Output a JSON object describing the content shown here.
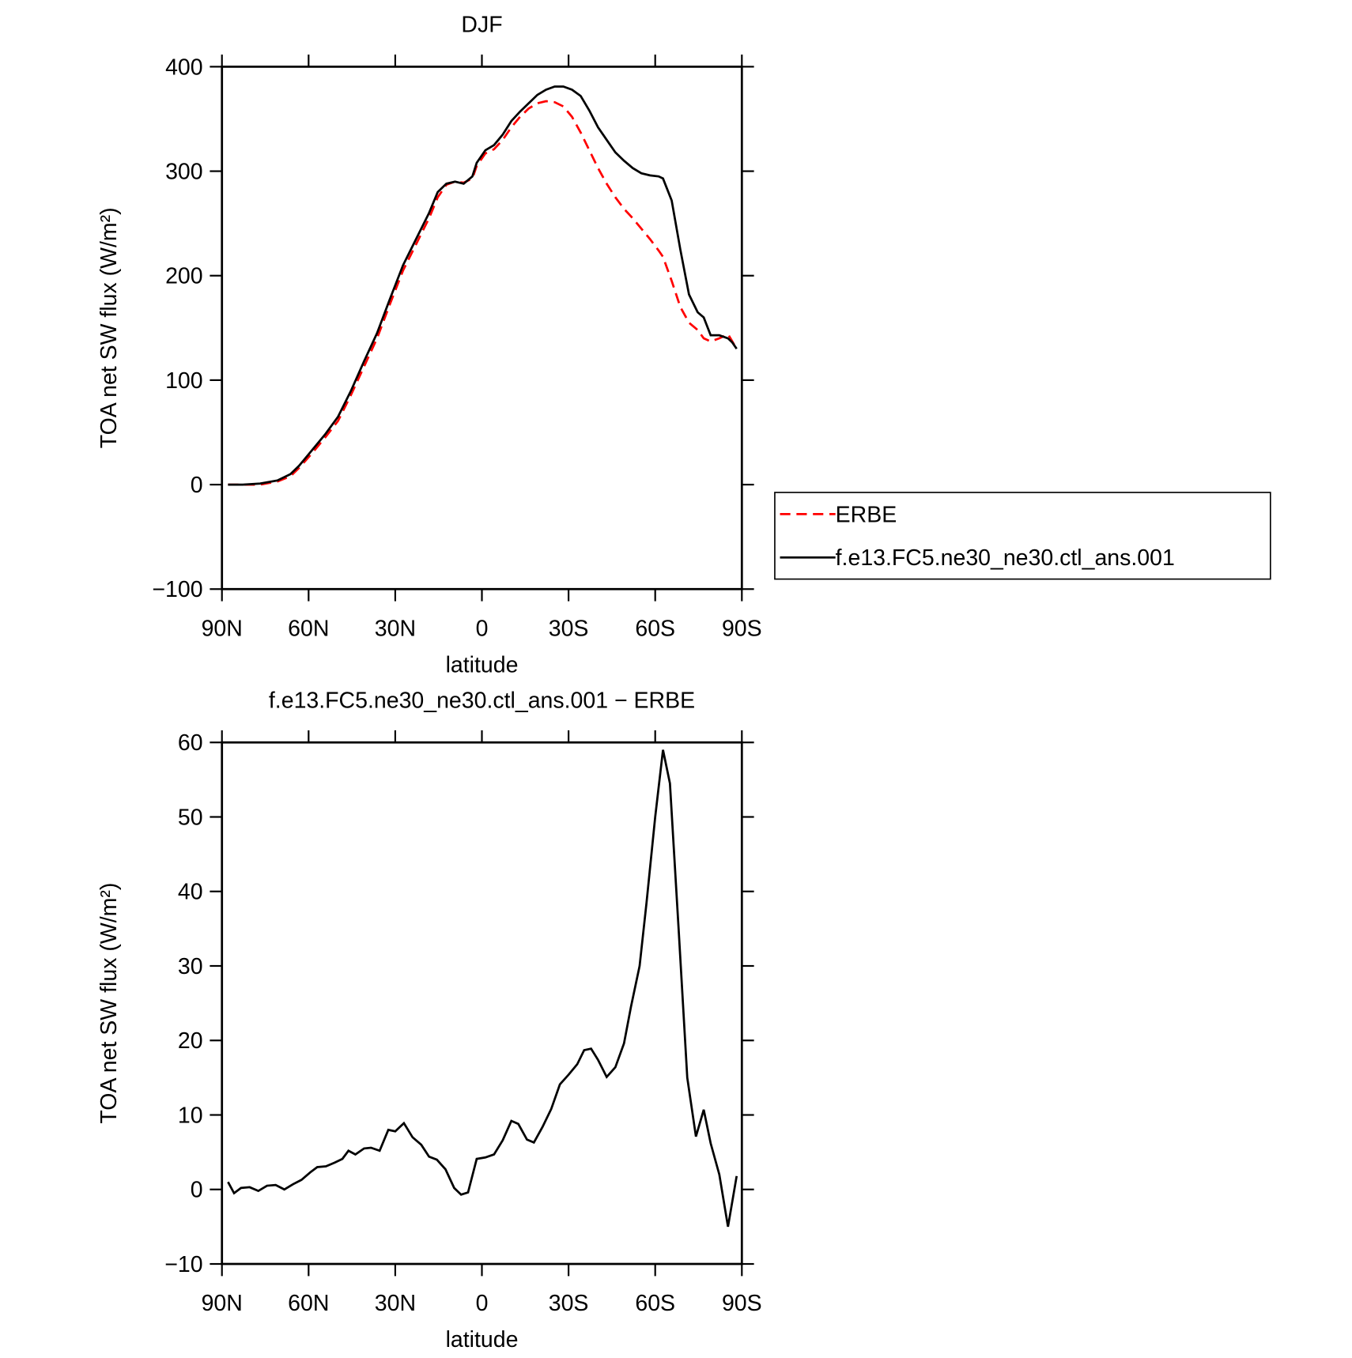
{
  "chart_data": [
    {
      "type": "line",
      "title": "DJF",
      "xlabel": "latitude",
      "ylabel": "TOA net SW flux (W/m²)",
      "xlim": [
        90,
        -90
      ],
      "ylim": [
        -100,
        400
      ],
      "xticks": [
        {
          "value": 90,
          "label": "90N"
        },
        {
          "value": 60,
          "label": "60N"
        },
        {
          "value": 30,
          "label": "30N"
        },
        0,
        {
          "value": -30,
          "label": "30S"
        },
        {
          "value": -60,
          "label": "60S"
        },
        {
          "value": -90,
          "label": "90S"
        }
      ],
      "yticks": [
        {
          "value": -100,
          "label": "−100"
        },
        0,
        100,
        200,
        300,
        400
      ],
      "legend": "right",
      "x": [
        87.9,
        82.8,
        76.8,
        70.8,
        66.3,
        63.3,
        58.8,
        54.3,
        49.8,
        45.3,
        40.8,
        36.3,
        31.8,
        27.3,
        22.8,
        18.3,
        15.3,
        12.3,
        9.3,
        6.3,
        3.3,
        1.8,
        -1.2,
        -4.2,
        -7.2,
        -10.2,
        -13.2,
        -16.2,
        -19.2,
        -22.2,
        -25.2,
        -28.2,
        -31.2,
        -34.2,
        -37.2,
        -40.2,
        -43.2,
        -46.2,
        -49.2,
        -52.2,
        -55.2,
        -58.2,
        -61.2,
        -62.7,
        -65.7,
        -68.7,
        -71.7,
        -74.7,
        -76.8,
        -79.2,
        -82.2,
        -85.2,
        -86.7,
        -88.2
      ],
      "series": [
        {
          "name": "ERBE",
          "color": "#ff0000",
          "line_style": "dashed",
          "values": [
            0,
            0,
            0,
            3,
            8,
            16,
            30,
            45,
            61,
            86,
            113,
            140,
            173,
            205,
            230,
            255,
            275,
            287,
            290,
            289,
            293,
            305,
            317,
            321,
            330,
            342,
            352,
            360,
            365,
            367,
            366,
            362,
            352,
            337,
            320,
            303,
            288,
            275,
            264,
            255,
            245,
            235,
            224,
            218,
            195,
            170,
            155,
            148,
            140,
            137,
            140,
            144,
            137,
            130
          ]
        },
        {
          "name": "f.e13.FC5.ne30_ne30.ctl_ans.001",
          "color": "#000000",
          "line_style": "solid",
          "values": [
            0,
            0,
            1,
            4,
            10,
            18,
            33,
            48,
            65,
            90,
            118,
            145,
            178,
            210,
            235,
            260,
            280,
            288,
            290,
            288,
            295,
            308,
            320,
            325,
            335,
            348,
            357,
            365,
            373,
            378,
            381,
            381,
            378,
            372,
            358,
            342,
            330,
            318,
            310,
            303,
            298,
            296,
            295,
            293,
            272,
            225,
            182,
            165,
            160,
            143,
            143,
            140,
            136,
            130
          ]
        }
      ]
    },
    {
      "type": "line",
      "title": "f.e13.FC5.ne30_ne30.ctl_ans.001 − ERBE",
      "xlabel": "latitude",
      "ylabel": "TOA net SW flux (W/m²)",
      "xlim": [
        90,
        -90
      ],
      "ylim": [
        -10,
        60
      ],
      "xticks": [
        {
          "value": 90,
          "label": "90N"
        },
        {
          "value": 60,
          "label": "60N"
        },
        {
          "value": 30,
          "label": "30N"
        },
        0,
        {
          "value": -30,
          "label": "30S"
        },
        {
          "value": -60,
          "label": "60S"
        },
        {
          "value": -90,
          "label": "90S"
        }
      ],
      "yticks": [
        {
          "value": -10,
          "label": "−10"
        },
        0,
        10,
        20,
        30,
        40,
        50,
        60
      ],
      "x": [
        87.9,
        85.8,
        83.4,
        80.4,
        77.4,
        74.4,
        71.4,
        68.4,
        65.4,
        62.4,
        59.4,
        57,
        54,
        51,
        48.3,
        46.2,
        43.8,
        40.8,
        38.4,
        35.4,
        32.4,
        30,
        27,
        24,
        21,
        18.3,
        15.6,
        12.6,
        9.6,
        7.2,
        4.8,
        1.8,
        -1.2,
        -4.2,
        -7.2,
        -10.2,
        -12.6,
        -15.6,
        -18,
        -21,
        -24,
        -27,
        -30,
        -33,
        -35.4,
        -37.8,
        -40.2,
        -43.2,
        -46.2,
        -49.2,
        -51.6,
        -54.6,
        -57,
        -60,
        -62.7,
        -65.1,
        -68.1,
        -71.1,
        -74.1,
        -76.8,
        -79.2,
        -82.2,
        -85.2,
        -88.2
      ],
      "series": [
        {
          "color": "#000000",
          "line_style": "solid",
          "values": [
            1,
            -0.5,
            0.2,
            0.3,
            -0.2,
            0.5,
            0.6,
            0,
            0.7,
            1.3,
            2.3,
            3,
            3.1,
            3.6,
            4.1,
            5.2,
            4.7,
            5.5,
            5.6,
            5.2,
            8,
            7.8,
            8.9,
            7,
            6,
            4.4,
            4,
            2.7,
            0.2,
            -0.7,
            -0.4,
            4.1,
            4.3,
            4.7,
            6.6,
            9.2,
            8.8,
            6.7,
            6.3,
            8.4,
            10.8,
            14.1,
            15.4,
            16.8,
            18.7,
            18.9,
            17.4,
            15.1,
            16.4,
            19.6,
            24.5,
            30,
            38.5,
            50,
            59,
            54.5,
            35,
            15,
            7.1,
            10.7,
            6.2,
            2,
            -5,
            1.8
          ]
        }
      ]
    }
  ]
}
